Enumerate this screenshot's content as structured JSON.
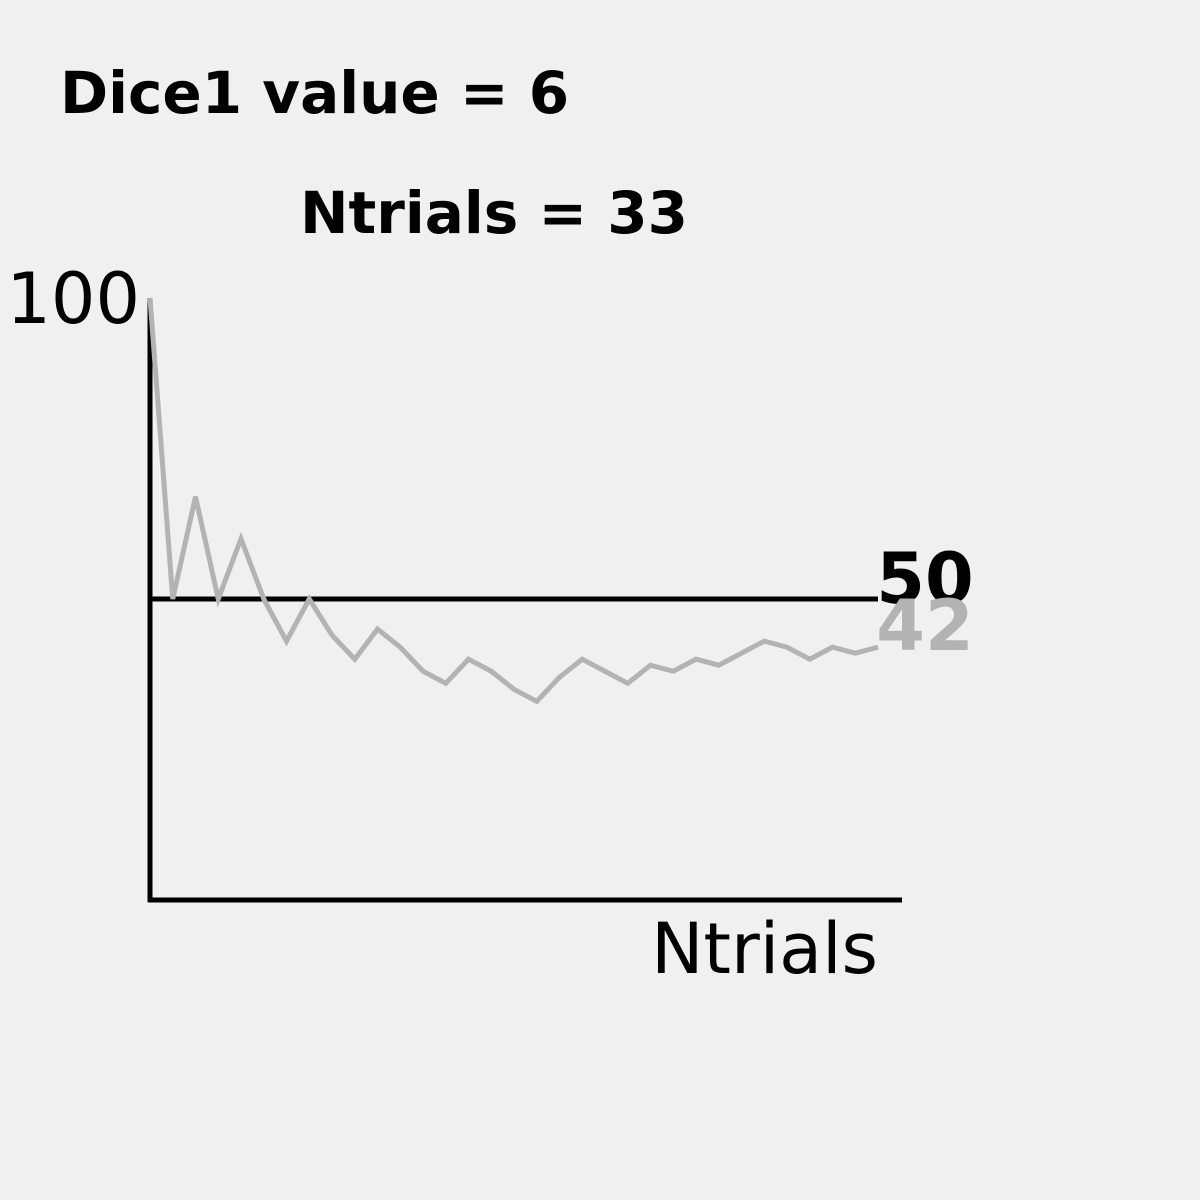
{
  "title_line1": "Dice1 value = 6",
  "title_line2": "Ntrials = 33",
  "chart_data": {
    "type": "line",
    "xlabel": "Ntrials",
    "ylabel": "",
    "y_tick_top": "100",
    "ylim": [
      0,
      100
    ],
    "xlim": [
      1,
      34
    ],
    "grid": false,
    "reference_line": {
      "value": 50,
      "label": "50",
      "color": "#000000"
    },
    "series": [
      {
        "color": "#b3b3b3",
        "end_label": "42",
        "x": [
          1,
          2,
          3,
          4,
          5,
          6,
          7,
          8,
          9,
          10,
          11,
          12,
          13,
          14,
          15,
          16,
          17,
          18,
          19,
          20,
          21,
          22,
          23,
          24,
          25,
          26,
          27,
          28,
          29,
          30,
          31,
          32,
          33
        ],
        "values": [
          100,
          50,
          67,
          50,
          60,
          50,
          43,
          50,
          44,
          40,
          45,
          42,
          38,
          36,
          40,
          38,
          35,
          33,
          37,
          40,
          38,
          36,
          39,
          38,
          40,
          39,
          41,
          43,
          42,
          40,
          42,
          41,
          42
        ]
      }
    ]
  },
  "colors": {
    "background": "#f0f0f0",
    "axis": "#000000",
    "series": "#b3b3b3"
  }
}
